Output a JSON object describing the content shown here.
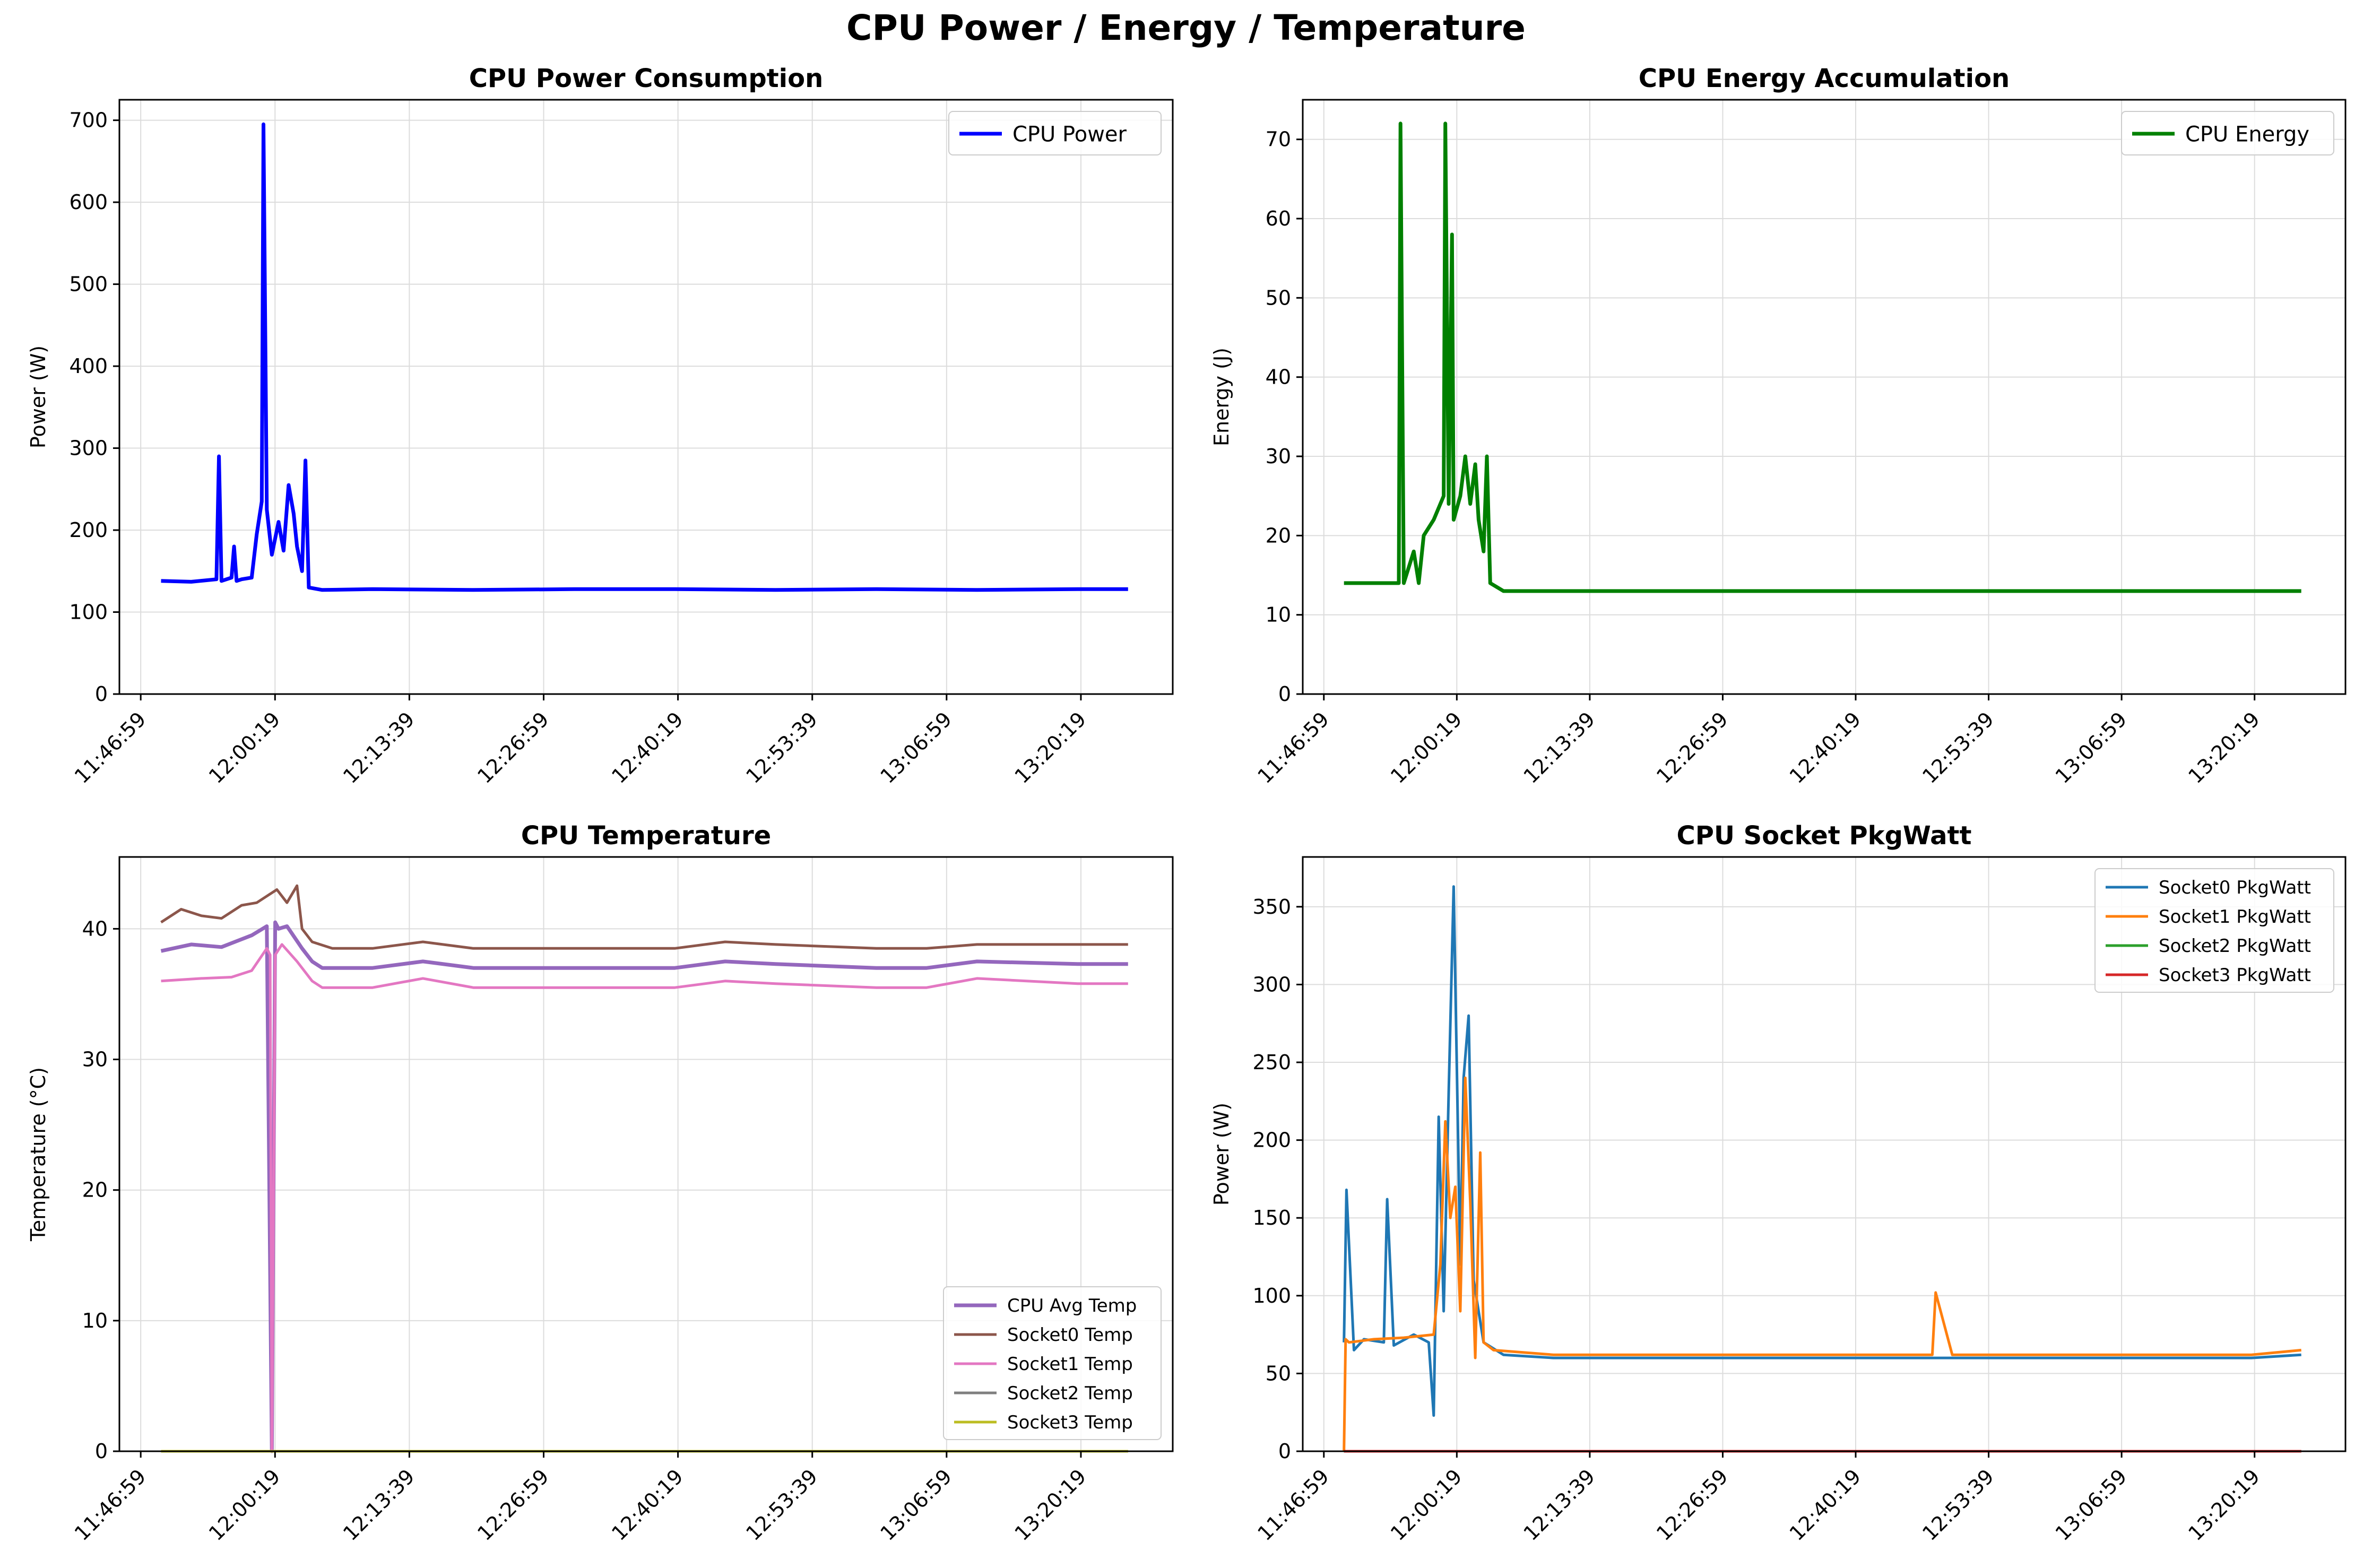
{
  "figure": {
    "suptitle": "CPU Power / Energy / Temperature"
  },
  "chart_data": [
    {
      "type": "line",
      "title": "CPU Power Consumption",
      "xlabel": "",
      "ylabel": "Power (W)",
      "x_ticks": [
        "11:46:59",
        "12:00:19",
        "12:13:39",
        "12:26:59",
        "12:40:19",
        "12:53:39",
        "13:06:59",
        "13:20:19"
      ],
      "xlim": [
        "11:44:52",
        "13:29:26"
      ],
      "ylim": [
        0,
        725
      ],
      "y_ticks": [
        0,
        100,
        200,
        300,
        400,
        500,
        600,
        700
      ],
      "grid": true,
      "legend": "top-right",
      "series": [
        {
          "name": "CPU Power",
          "color": "#0000ff",
          "width": 7,
          "x": [
            "11:49:00",
            "11:52:00",
            "11:54:30",
            "11:54:45",
            "11:55:00",
            "11:56:00",
            "11:56:15",
            "11:56:30",
            "11:57:00",
            "11:58:00",
            "11:58:30",
            "11:59:00",
            "11:59:10",
            "11:59:30",
            "12:00:00",
            "12:00:40",
            "12:01:10",
            "12:01:40",
            "12:02:10",
            "12:02:30",
            "12:03:00",
            "12:03:20",
            "12:03:40",
            "12:05:00",
            "12:10:00",
            "12:20:00",
            "12:30:00",
            "12:40:00",
            "12:50:00",
            "13:00:00",
            "13:10:00",
            "13:20:00",
            "13:25:00"
          ],
          "y": [
            138,
            137,
            140,
            290,
            138,
            142,
            180,
            138,
            140,
            142,
            195,
            235,
            695,
            225,
            170,
            210,
            175,
            255,
            220,
            180,
            150,
            285,
            130,
            127,
            128,
            127,
            128,
            128,
            127,
            128,
            127,
            128,
            128
          ]
        }
      ]
    },
    {
      "type": "line",
      "title": "CPU Energy Accumulation",
      "xlabel": "",
      "ylabel": "Energy (J)",
      "x_ticks": [
        "11:46:59",
        "12:00:19",
        "12:13:39",
        "12:26:59",
        "12:40:19",
        "12:53:39",
        "13:06:59",
        "13:20:19"
      ],
      "xlim": [
        "11:44:52",
        "13:29:26"
      ],
      "ylim": [
        0,
        75
      ],
      "y_ticks": [
        0,
        10,
        20,
        30,
        40,
        50,
        60,
        70
      ],
      "grid": true,
      "legend": "top-right",
      "series": [
        {
          "name": "CPU Energy",
          "color": "#008000",
          "width": 7,
          "x": [
            "11:49:00",
            "11:53:00",
            "11:54:30",
            "11:54:40",
            "11:55:00",
            "11:56:00",
            "11:56:30",
            "11:57:00",
            "11:58:00",
            "11:59:00",
            "11:59:10",
            "11:59:30",
            "11:59:50",
            "12:00:00",
            "12:00:40",
            "12:01:10",
            "12:01:40",
            "12:02:10",
            "12:02:30",
            "12:03:00",
            "12:03:20",
            "12:03:40",
            "12:05:00",
            "12:10:00",
            "12:20:00",
            "12:30:00",
            "12:40:00",
            "12:50:00",
            "13:00:00",
            "13:10:00",
            "13:20:00",
            "13:25:00"
          ],
          "y": [
            14,
            14,
            14,
            72,
            14,
            18,
            14,
            20,
            22,
            25,
            72,
            24,
            58,
            22,
            25,
            30,
            24,
            29,
            22,
            18,
            30,
            14,
            13,
            13,
            13,
            13,
            13,
            13,
            13,
            13,
            13,
            13
          ]
        }
      ]
    },
    {
      "type": "line",
      "title": "CPU Temperature",
      "xlabel": "",
      "ylabel": "Temperature (°C)",
      "x_ticks": [
        "11:46:59",
        "12:00:19",
        "12:13:39",
        "12:26:59",
        "12:40:19",
        "12:53:39",
        "13:06:59",
        "13:20:19"
      ],
      "xlim": [
        "11:44:52",
        "13:29:26"
      ],
      "ylim": [
        0,
        45.5
      ],
      "y_ticks": [
        0,
        10,
        20,
        30,
        40
      ],
      "grid": true,
      "legend": "bottom-right",
      "series": [
        {
          "name": "CPU Avg Temp",
          "color": "#9467bd",
          "width": 7,
          "x": [
            "11:49:00",
            "11:52:00",
            "11:55:00",
            "11:58:00",
            "11:59:30",
            "12:00:00",
            "12:00:20",
            "12:00:40",
            "12:01:30",
            "12:03:00",
            "12:04:00",
            "12:05:00",
            "12:10:00",
            "12:15:00",
            "12:20:00",
            "12:30:00",
            "12:40:00",
            "12:45:00",
            "12:50:00",
            "13:00:00",
            "13:05:00",
            "13:10:00",
            "13:20:00",
            "13:25:00"
          ],
          "y": [
            38.3,
            38.8,
            38.6,
            39.5,
            40.2,
            0,
            40.5,
            40.0,
            40.2,
            38.5,
            37.5,
            37.0,
            37.0,
            37.5,
            37.0,
            37.0,
            37.0,
            37.5,
            37.3,
            37.0,
            37.0,
            37.5,
            37.3,
            37.3
          ]
        },
        {
          "name": "Socket0 Temp",
          "color": "#8c564b",
          "width": 5,
          "x": [
            "11:49:00",
            "11:51:00",
            "11:53:00",
            "11:55:00",
            "11:57:00",
            "11:58:30",
            "11:59:30",
            "12:00:30",
            "12:01:30",
            "12:02:30",
            "12:03:00",
            "12:04:00",
            "12:06:00",
            "12:10:00",
            "12:15:00",
            "12:20:00",
            "12:30:00",
            "12:40:00",
            "12:45:00",
            "12:50:00",
            "13:00:00",
            "13:05:00",
            "13:10:00",
            "13:20:00",
            "13:25:00"
          ],
          "y": [
            40.5,
            41.5,
            41.0,
            40.8,
            41.8,
            42.0,
            42.5,
            43.0,
            42.0,
            43.3,
            40.0,
            39.0,
            38.5,
            38.5,
            39.0,
            38.5,
            38.5,
            38.5,
            39.0,
            38.8,
            38.5,
            38.5,
            38.8,
            38.8,
            38.8
          ]
        },
        {
          "name": "Socket1 Temp",
          "color": "#e377c2",
          "width": 5,
          "x": [
            "11:49:00",
            "11:53:00",
            "11:56:00",
            "11:58:00",
            "11:59:30",
            "11:59:50",
            "12:00:00",
            "12:00:20",
            "12:01:00",
            "12:02:30",
            "12:04:00",
            "12:05:00",
            "12:10:00",
            "12:15:00",
            "12:20:00",
            "12:30:00",
            "12:40:00",
            "12:45:00",
            "12:50:00",
            "13:00:00",
            "13:05:00",
            "13:10:00",
            "13:20:00",
            "13:25:00"
          ],
          "y": [
            36.0,
            36.2,
            36.3,
            36.8,
            38.5,
            38.0,
            0,
            38.0,
            38.8,
            37.5,
            36.0,
            35.5,
            35.5,
            36.2,
            35.5,
            35.5,
            35.5,
            36.0,
            35.8,
            35.5,
            35.5,
            36.2,
            35.8,
            35.8
          ]
        },
        {
          "name": "Socket2 Temp",
          "color": "#7f7f7f",
          "width": 5,
          "x": [
            "11:49:00",
            "13:25:00"
          ],
          "y": [
            0,
            0
          ]
        },
        {
          "name": "Socket3 Temp",
          "color": "#bcbd22",
          "width": 5,
          "x": [
            "11:49:00",
            "13:25:00"
          ],
          "y": [
            0,
            0
          ]
        }
      ]
    },
    {
      "type": "line",
      "title": "CPU Socket PkgWatt",
      "xlabel": "",
      "ylabel": "Power (W)",
      "x_ticks": [
        "11:46:59",
        "12:00:19",
        "12:13:39",
        "12:26:59",
        "12:40:19",
        "12:53:39",
        "13:06:59",
        "13:20:19"
      ],
      "xlim": [
        "11:44:52",
        "13:29:26"
      ],
      "ylim": [
        0,
        382
      ],
      "y_ticks": [
        0,
        50,
        100,
        150,
        200,
        250,
        300,
        350
      ],
      "grid": true,
      "legend": "top-right",
      "series": [
        {
          "name": "Socket0 PkgWatt",
          "color": "#1f77b4",
          "width": 5,
          "x": [
            "11:49:00",
            "11:49:15",
            "11:50:00",
            "11:51:00",
            "11:53:00",
            "11:53:20",
            "11:54:00",
            "11:56:00",
            "11:57:30",
            "11:58:00",
            "11:58:30",
            "11:59:00",
            "11:59:30",
            "12:00:00",
            "12:00:40",
            "12:01:00",
            "12:01:30",
            "12:02:00",
            "12:03:00",
            "12:05:00",
            "12:10:00",
            "12:20:00",
            "12:30:00",
            "12:40:00",
            "12:50:00",
            "13:00:00",
            "13:10:00",
            "13:20:00",
            "13:25:00"
          ],
          "y": [
            70,
            168,
            65,
            72,
            70,
            162,
            68,
            75,
            70,
            23,
            215,
            90,
            230,
            363,
            120,
            240,
            280,
            110,
            70,
            62,
            60,
            60,
            60,
            60,
            60,
            60,
            60,
            60,
            62
          ]
        },
        {
          "name": "Socket1 PkgWatt",
          "color": "#ff7f0e",
          "width": 5,
          "x": [
            "11:49:00",
            "11:49:10",
            "11:49:30",
            "11:52:00",
            "11:55:00",
            "11:58:00",
            "11:58:40",
            "11:59:10",
            "11:59:40",
            "12:00:10",
            "12:00:40",
            "12:01:10",
            "12:01:40",
            "12:02:10",
            "12:02:40",
            "12:03:00",
            "12:04:00",
            "12:10:00",
            "12:20:00",
            "12:30:00",
            "12:40:00",
            "12:48:00",
            "12:48:20",
            "12:50:00",
            "13:00:00",
            "13:10:00",
            "13:20:00",
            "13:25:00"
          ],
          "y": [
            0,
            72,
            70,
            72,
            73,
            75,
            120,
            212,
            150,
            170,
            90,
            240,
            160,
            60,
            192,
            70,
            65,
            62,
            62,
            62,
            62,
            62,
            102,
            62,
            62,
            62,
            62,
            65
          ]
        },
        {
          "name": "Socket2 PkgWatt",
          "color": "#2ca02c",
          "width": 5,
          "x": [
            "11:49:00",
            "13:25:00"
          ],
          "y": [
            0,
            0
          ]
        },
        {
          "name": "Socket3 PkgWatt",
          "color": "#d62728",
          "width": 5,
          "x": [
            "11:49:00",
            "13:25:00"
          ],
          "y": [
            0,
            0
          ]
        }
      ]
    }
  ]
}
